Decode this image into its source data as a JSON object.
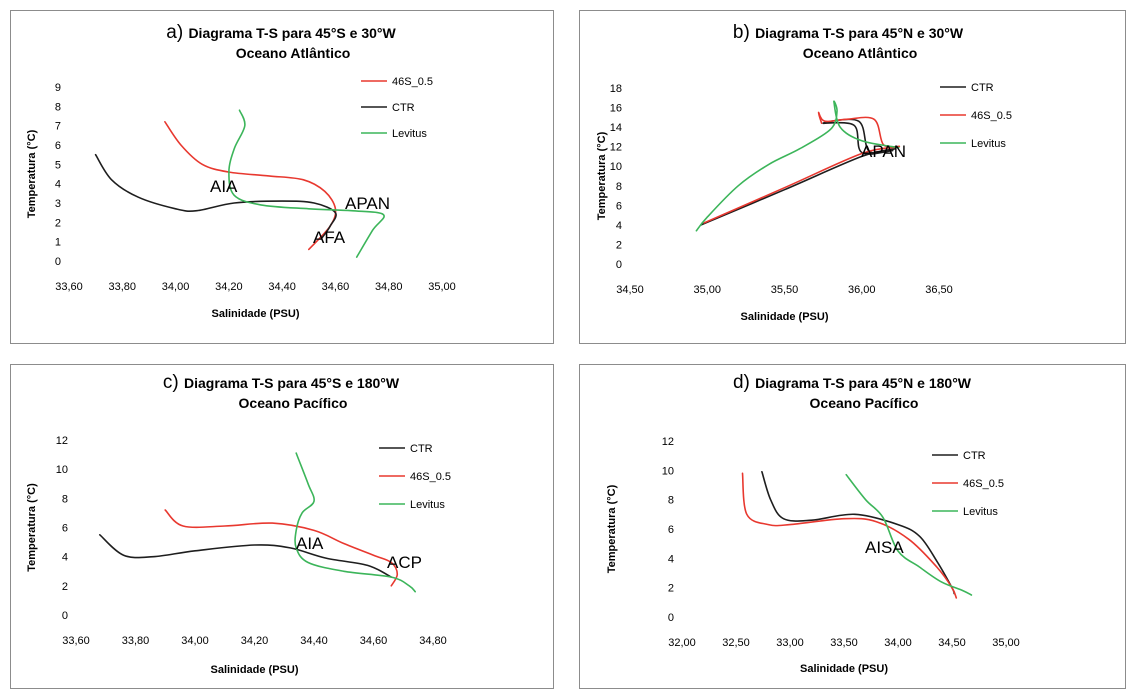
{
  "chart_data": [
    {
      "type": "line",
      "panel": "a)",
      "title_lines": [
        "Diagrama T-S para 45°S e 30°W",
        "Oceano Atlântico"
      ],
      "xlabel": "Salinidade (PSU)",
      "ylabel": "Temperatura (°C)",
      "xlim": [
        33.6,
        35.0
      ],
      "ylim": [
        0,
        9
      ],
      "xticks": [
        "33,60",
        "33,80",
        "34,00",
        "34,20",
        "34,40",
        "34,60",
        "34,80",
        "35,00"
      ],
      "yticks": [
        "0",
        "1",
        "2",
        "3",
        "4",
        "5",
        "6",
        "7",
        "8",
        "9"
      ],
      "grid": false,
      "legend_position": "top-right",
      "series": [
        {
          "name": "46S_0.5",
          "color": "#e8382f",
          "points": [
            [
              33.96,
              7.2
            ],
            [
              34.02,
              6.0
            ],
            [
              34.1,
              5.0
            ],
            [
              34.2,
              4.6
            ],
            [
              34.35,
              4.4
            ],
            [
              34.48,
              4.2
            ],
            [
              34.56,
              3.6
            ],
            [
              34.6,
              2.7
            ],
            [
              34.58,
              1.8
            ],
            [
              34.5,
              0.6
            ]
          ]
        },
        {
          "name": "CTR",
          "color": "#1e1e1e",
          "points": [
            [
              33.7,
              5.5
            ],
            [
              33.76,
              4.2
            ],
            [
              33.86,
              3.3
            ],
            [
              34.0,
              2.7
            ],
            [
              34.08,
              2.6
            ],
            [
              34.22,
              3.0
            ],
            [
              34.4,
              3.1
            ],
            [
              34.52,
              3.0
            ],
            [
              34.6,
              2.5
            ],
            [
              34.58,
              1.8
            ],
            [
              34.55,
              1.2
            ]
          ]
        },
        {
          "name": "Levitus",
          "color": "#3cb55a",
          "points": [
            [
              34.24,
              7.8
            ],
            [
              34.26,
              7.0
            ],
            [
              34.22,
              5.8
            ],
            [
              34.2,
              4.6
            ],
            [
              34.22,
              3.4
            ],
            [
              34.32,
              2.9
            ],
            [
              34.5,
              2.7
            ],
            [
              34.66,
              2.6
            ],
            [
              34.78,
              2.4
            ],
            [
              34.74,
              1.6
            ],
            [
              34.68,
              0.2
            ]
          ]
        }
      ],
      "annotations": [
        "AIA",
        "APAN",
        "AFA"
      ]
    },
    {
      "type": "line",
      "panel": "b)",
      "title_lines": [
        "Diagrama T-S para 45°N e 30°W",
        "Oceano Atlântico"
      ],
      "xlabel": "Salinidade (PSU)",
      "ylabel": "Temperatura (°C)",
      "xlim": [
        34.5,
        36.5
      ],
      "ylim": [
        0,
        18
      ],
      "xticks": [
        "34,50",
        "35,00",
        "35,50",
        "36,00",
        "36,50"
      ],
      "yticks": [
        "0",
        "2",
        "4",
        "6",
        "8",
        "10",
        "12",
        "14",
        "16",
        "18"
      ],
      "grid": false,
      "legend_position": "top-right",
      "series": [
        {
          "name": "CTR",
          "color": "#1e1e1e",
          "points": [
            [
              34.96,
              4.0
            ],
            [
              35.5,
              7.6
            ],
            [
              36.0,
              11.0
            ],
            [
              36.22,
              11.8
            ],
            [
              36.05,
              11.5
            ],
            [
              35.98,
              14.6
            ],
            [
              35.75,
              14.4
            ],
            [
              35.95,
              14.2
            ],
            [
              36.0,
              11.4
            ],
            [
              36.2,
              11.6
            ]
          ]
        },
        {
          "name": "46S_0.5",
          "color": "#e8382f",
          "points": [
            [
              34.98,
              4.2
            ],
            [
              35.5,
              7.8
            ],
            [
              36.0,
              11.3
            ],
            [
              36.24,
              12.0
            ],
            [
              36.14,
              12.2
            ],
            [
              36.08,
              14.8
            ],
            [
              35.9,
              14.8
            ],
            [
              35.76,
              14.6
            ],
            [
              35.72,
              15.5
            ],
            [
              35.74,
              14.4
            ]
          ]
        },
        {
          "name": "Levitus",
          "color": "#3cb55a",
          "points": [
            [
              34.93,
              3.4
            ],
            [
              35.0,
              4.8
            ],
            [
              35.2,
              8.0
            ],
            [
              35.4,
              10.2
            ],
            [
              35.6,
              11.8
            ],
            [
              35.8,
              13.8
            ],
            [
              35.84,
              15.6
            ],
            [
              35.82,
              16.6
            ],
            [
              35.86,
              14.0
            ],
            [
              36.0,
              12.6
            ],
            [
              36.24,
              11.9
            ]
          ]
        }
      ],
      "annotations": [
        "APAN"
      ]
    },
    {
      "type": "line",
      "panel": "c)",
      "title_lines": [
        "Diagrama T-S para 45°S e 180°W",
        "Oceano Pacífico"
      ],
      "xlabel": "Salinidade (PSU)",
      "ylabel": "Temperatura (°C)",
      "xlim": [
        33.6,
        34.8
      ],
      "ylim": [
        0,
        12
      ],
      "xticks": [
        "33,60",
        "33,80",
        "34,00",
        "34,20",
        "34,40",
        "34,60",
        "34,80"
      ],
      "yticks": [
        "0",
        "2",
        "4",
        "6",
        "8",
        "10",
        "12"
      ],
      "grid": false,
      "legend_position": "top-right",
      "series": [
        {
          "name": "CTR",
          "color": "#1e1e1e",
          "points": [
            [
              33.68,
              5.5
            ],
            [
              33.76,
              4.1
            ],
            [
              33.86,
              4.0
            ],
            [
              34.0,
              4.4
            ],
            [
              34.2,
              4.8
            ],
            [
              34.32,
              4.6
            ],
            [
              34.44,
              3.9
            ],
            [
              34.58,
              3.4
            ],
            [
              34.66,
              2.6
            ]
          ]
        },
        {
          "name": "46S_0.5",
          "color": "#e8382f",
          "points": [
            [
              33.9,
              7.2
            ],
            [
              33.96,
              6.1
            ],
            [
              34.1,
              6.1
            ],
            [
              34.26,
              6.3
            ],
            [
              34.4,
              5.8
            ],
            [
              34.5,
              4.9
            ],
            [
              34.6,
              4.1
            ],
            [
              34.66,
              3.6
            ],
            [
              34.68,
              2.8
            ],
            [
              34.66,
              2.0
            ]
          ]
        },
        {
          "name": "Levitus",
          "color": "#3cb55a",
          "points": [
            [
              34.34,
              11.1
            ],
            [
              34.38,
              9.0
            ],
            [
              34.4,
              7.8
            ],
            [
              34.36,
              7.0
            ],
            [
              34.34,
              5.8
            ],
            [
              34.34,
              4.6
            ],
            [
              34.38,
              3.6
            ],
            [
              34.5,
              3.0
            ],
            [
              34.66,
              2.6
            ],
            [
              34.72,
              2.0
            ],
            [
              34.74,
              1.6
            ]
          ]
        }
      ],
      "annotations": [
        "AIA",
        "ACP"
      ]
    },
    {
      "type": "line",
      "panel": "d)",
      "title_lines": [
        "Diagrama T-S para 45°N e 180°W",
        "Oceano Pacífico"
      ],
      "xlabel": "Salinidade (PSU)",
      "ylabel": "Temperatura (°C)",
      "xlim": [
        32.0,
        35.0
      ],
      "ylim": [
        0,
        12
      ],
      "xticks": [
        "32,00",
        "32,50",
        "33,00",
        "33,50",
        "34,00",
        "34,50",
        "35,00"
      ],
      "yticks": [
        "0",
        "2",
        "4",
        "6",
        "8",
        "10",
        "12"
      ],
      "grid": false,
      "legend_position": "top-right",
      "series": [
        {
          "name": "CTR",
          "color": "#1e1e1e",
          "points": [
            [
              32.74,
              9.9
            ],
            [
              32.82,
              8.0
            ],
            [
              32.94,
              6.7
            ],
            [
              33.2,
              6.6
            ],
            [
              33.6,
              7.0
            ],
            [
              34.0,
              6.3
            ],
            [
              34.2,
              5.5
            ],
            [
              34.36,
              3.8
            ],
            [
              34.5,
              2.0
            ],
            [
              34.52,
              1.6
            ]
          ]
        },
        {
          "name": "46S_0.5",
          "color": "#e8382f",
          "points": [
            [
              32.56,
              9.8
            ],
            [
              32.6,
              7.0
            ],
            [
              32.8,
              6.3
            ],
            [
              33.0,
              6.3
            ],
            [
              33.5,
              6.7
            ],
            [
              33.8,
              6.5
            ],
            [
              34.1,
              5.3
            ],
            [
              34.36,
              3.4
            ],
            [
              34.5,
              2.0
            ],
            [
              34.54,
              1.3
            ]
          ]
        },
        {
          "name": "Levitus",
          "color": "#3cb55a",
          "points": [
            [
              33.52,
              9.7
            ],
            [
              33.7,
              8.0
            ],
            [
              33.86,
              6.8
            ],
            [
              34.0,
              4.5
            ],
            [
              34.2,
              3.4
            ],
            [
              34.4,
              2.4
            ],
            [
              34.6,
              1.8
            ],
            [
              34.68,
              1.5
            ]
          ]
        }
      ],
      "annotations": [
        "AISA"
      ]
    }
  ]
}
